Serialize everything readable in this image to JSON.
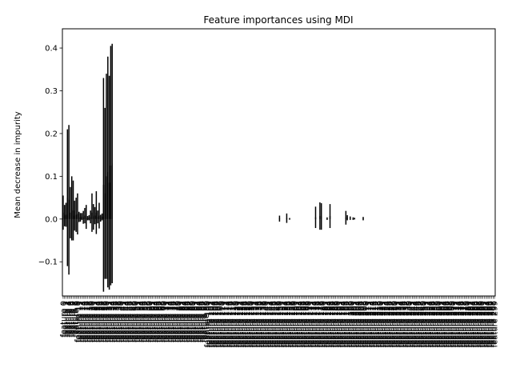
{
  "chart_data": {
    "type": "bar",
    "title": "Feature importances using MDI",
    "xlabel": "",
    "ylabel": "Mean decrease in impurity",
    "ylim": [
      -0.18,
      0.445
    ],
    "yticks": [
      -0.1,
      0.0,
      0.1,
      0.2,
      0.3,
      0.4
    ],
    "ytick_labels": [
      "−0.1",
      "0.0",
      "0.1",
      "0.2",
      "0.3",
      "0.4"
    ],
    "xtick_label_prefix": "feature",
    "n_features": 300,
    "error_bars": true,
    "bar_color": "#000000",
    "bars": [
      {
        "i": 0,
        "v": 0.015,
        "err": 0.04
      },
      {
        "i": 1,
        "v": 0.008,
        "err": 0.025
      },
      {
        "i": 2,
        "v": 0.01,
        "err": 0.028
      },
      {
        "i": 3,
        "v": 0.05,
        "err": 0.16
      },
      {
        "i": 4,
        "v": 0.045,
        "err": 0.175
      },
      {
        "i": 5,
        "v": 0.015,
        "err": 0.06
      },
      {
        "i": 6,
        "v": 0.025,
        "err": 0.075
      },
      {
        "i": 7,
        "v": 0.02,
        "err": 0.07
      },
      {
        "i": 8,
        "v": 0.008,
        "err": 0.035
      },
      {
        "i": 9,
        "v": 0.01,
        "err": 0.04
      },
      {
        "i": 10,
        "v": 0.012,
        "err": 0.048
      },
      {
        "i": 11,
        "v": 0.005,
        "err": 0.012
      },
      {
        "i": 12,
        "v": 0.004,
        "err": 0.01
      },
      {
        "i": 13,
        "v": 0.006,
        "err": 0.008
      },
      {
        "i": 14,
        "v": 0.004,
        "err": 0.015
      },
      {
        "i": 15,
        "v": 0.008,
        "err": 0.018
      },
      {
        "i": 16,
        "v": 0.005,
        "err": 0.028
      },
      {
        "i": 17,
        "v": 0.002,
        "err": 0.005
      },
      {
        "i": 18,
        "v": 0.003,
        "err": 0.006
      },
      {
        "i": 19,
        "v": 0.005,
        "err": 0.015
      },
      {
        "i": 20,
        "v": 0.015,
        "err": 0.045
      },
      {
        "i": 21,
        "v": 0.005,
        "err": 0.03
      },
      {
        "i": 22,
        "v": 0.008,
        "err": 0.02
      },
      {
        "i": 23,
        "v": 0.015,
        "err": 0.05
      },
      {
        "i": 24,
        "v": 0.005,
        "err": 0.015
      },
      {
        "i": 25,
        "v": 0.008,
        "err": 0.03
      },
      {
        "i": 26,
        "v": 0.002,
        "err": 0.008
      },
      {
        "i": 27,
        "v": 0.005,
        "err": 0.008
      },
      {
        "i": 28,
        "v": 0.08,
        "err": 0.25
      },
      {
        "i": 29,
        "v": 0.06,
        "err": 0.2
      },
      {
        "i": 30,
        "v": 0.1,
        "err": 0.24
      },
      {
        "i": 31,
        "v": 0.11,
        "err": 0.27
      },
      {
        "i": 32,
        "v": 0.085,
        "err": 0.25
      },
      {
        "i": 33,
        "v": 0.125,
        "err": 0.28
      },
      {
        "i": 34,
        "v": 0.13,
        "err": 0.28
      },
      {
        "i": 150,
        "v": 0.001,
        "err": 0.007
      },
      {
        "i": 155,
        "v": 0.002,
        "err": 0.011
      },
      {
        "i": 157,
        "v": 0.0005,
        "err": 0.002
      },
      {
        "i": 175,
        "v": 0.004,
        "err": 0.025
      },
      {
        "i": 178,
        "v": 0.007,
        "err": 0.032
      },
      {
        "i": 179,
        "v": 0.006,
        "err": 0.031
      },
      {
        "i": 183,
        "v": 0.001,
        "err": 0.003
      },
      {
        "i": 185,
        "v": 0.007,
        "err": 0.028
      },
      {
        "i": 196,
        "v": 0.003,
        "err": 0.016
      },
      {
        "i": 197,
        "v": 0.003,
        "err": 0.006
      },
      {
        "i": 199,
        "v": 0.002,
        "err": 0.004
      },
      {
        "i": 201,
        "v": 0.001,
        "err": 0.003
      },
      {
        "i": 202,
        "v": 0.001,
        "err": 0.002
      },
      {
        "i": 208,
        "v": 0.001,
        "err": 0.004
      }
    ]
  }
}
